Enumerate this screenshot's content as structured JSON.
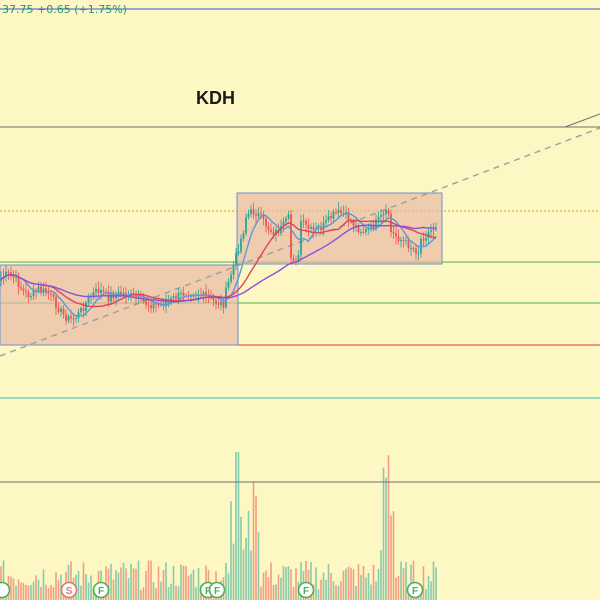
{
  "header": {
    "price_readout": "37.75 +0.65 (+1.75%)"
  },
  "chart_title": "KDH",
  "colors": {
    "background": "#fdf7c3",
    "up_candle": "#26a69a",
    "down_candle": "#ef5350",
    "box_fill": "#e7b9a4",
    "box_border": "#6f8fd3",
    "ma_red": "#e04357",
    "ma_purple": "#8e4fd8",
    "ma_blue": "#5b9ad8",
    "resistance": "#d4a017",
    "line_blue": "#3b5bd5",
    "line_gray": "#707070",
    "line_green": "#4caf50",
    "line_red": "#e53935",
    "line_teal": "#2bc0c0",
    "trend_dash": "#9e9e9e",
    "dividend_marker": "#e57373",
    "earnings_marker": "#4caf50"
  },
  "chart_data": {
    "type": "candlestick",
    "title": "KDH",
    "price_label": "37.75 +0.65 (+1.75%)",
    "num_bars": 175,
    "series": [
      {
        "type": "moving_average",
        "color": "red"
      },
      {
        "type": "moving_average",
        "color": "purple"
      },
      {
        "type": "moving_average",
        "color": "blue"
      },
      {
        "type": "volume"
      }
    ],
    "annotations": {
      "consolidation_boxes": 2,
      "horizontal_lines": [
        "blue",
        "gray",
        "orange-dotted",
        "green",
        "green",
        "red",
        "teal",
        "gray"
      ],
      "trendline": "dashed gray ascending"
    },
    "event_markers": [
      "S",
      "F",
      "F",
      "F",
      "F"
    ]
  }
}
